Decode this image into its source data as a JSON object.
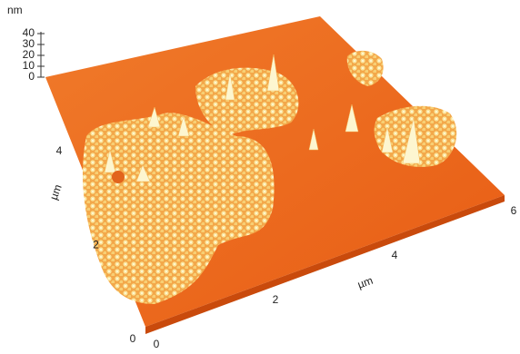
{
  "z_axis": {
    "unit": "nm",
    "ticks": [
      40,
      30,
      20,
      10,
      0
    ]
  },
  "y_axis": {
    "unit": "µm",
    "ticks": [
      4,
      2,
      0
    ]
  },
  "x_axis": {
    "unit": "µm",
    "ticks": [
      0,
      2,
      4,
      6
    ]
  }
}
